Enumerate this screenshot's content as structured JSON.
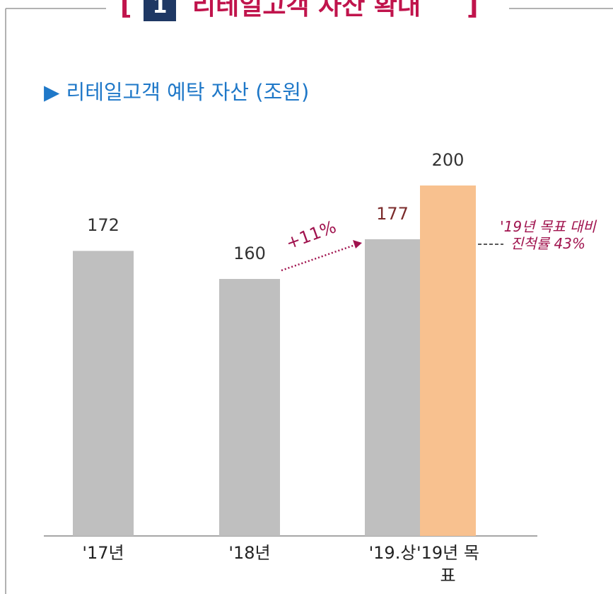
{
  "chart_data": {
    "type": "bar",
    "title_number": "1",
    "title": "리테일고객 자산 확대",
    "subtitle": "▶ 리테일고객 예탁 자산 (조원)",
    "categories": [
      "'17년",
      "'18년",
      "'19.상",
      "'19년 목표"
    ],
    "values": [
      172,
      160,
      177,
      200
    ],
    "colors": [
      "#bfbfbf",
      "#bfbfbf",
      "#bfbfbf",
      "#f8c18f"
    ],
    "label_colors": [
      "#333333",
      "#333333",
      "#7b2b2b",
      "#333333"
    ],
    "ylim": [
      50,
      200
    ],
    "annotations": [
      "+11%",
      "'19년 목표 대비 진척률 43%"
    ]
  }
}
